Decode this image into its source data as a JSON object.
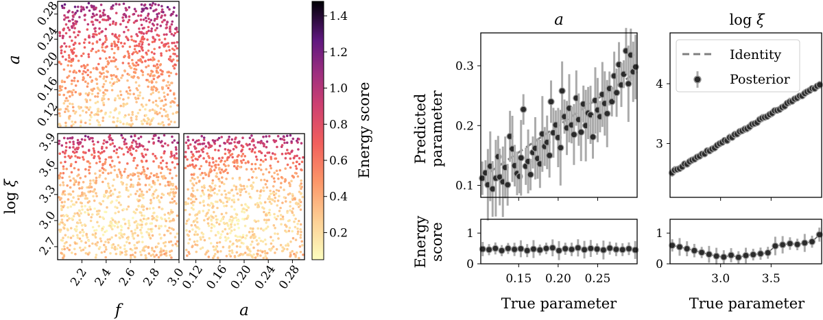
{
  "colors": {
    "identity": "#7f7f7f",
    "posterior": "#2b2b2b",
    "errorbar": "#aaaaaa"
  },
  "chart_data": [
    {
      "type": "scatter",
      "panel": "f-a",
      "colormap": "magma_r",
      "xlim": [
        2.0,
        3.0
      ],
      "ylim": [
        0.1,
        0.3
      ],
      "x_ticks": [],
      "y_ticks": [
        "0.12",
        "0.16",
        "0.20",
        "0.24",
        "0.28"
      ],
      "ylabel": "a"
    },
    {
      "type": "scatter",
      "panel": "f-logxi",
      "colormap": "magma_r",
      "xlim": [
        2.0,
        3.0
      ],
      "ylim": [
        2.55,
        4.0
      ],
      "x_ticks": [
        "2.2",
        "2.4",
        "2.6",
        "2.8",
        "3.0"
      ],
      "y_ticks": [
        "2.7",
        "3.0",
        "3.3",
        "3.6",
        "3.9"
      ],
      "xlabel": "f",
      "ylabel": "log ξ"
    },
    {
      "type": "scatter",
      "panel": "a-logxi",
      "colormap": "magma_r",
      "xlim": [
        0.1,
        0.3
      ],
      "ylim": [
        2.55,
        4.0
      ],
      "x_ticks": [
        "0.12",
        "0.16",
        "0.20",
        "0.24",
        "0.28"
      ],
      "y_ticks": [],
      "xlabel": "a"
    },
    {
      "type": "heatmap",
      "panel": "colorbar",
      "label": "Energy score",
      "range": [
        0.05,
        1.48
      ],
      "ticks": [
        "0.2",
        "0.4",
        "0.6",
        "0.8",
        "1.0",
        "1.2",
        "1.4"
      ]
    },
    {
      "type": "scatter",
      "panel": "recovery-a",
      "title": "a",
      "ylabel_line1": "Predicted",
      "ylabel_line2": "parameter",
      "xlim": [
        0.102,
        0.3
      ],
      "ylim": [
        0.08,
        0.355
      ],
      "y_ticks": [
        "0.1",
        "0.2",
        "0.3"
      ],
      "series": [
        {
          "name": "Identity"
        },
        {
          "name": "Posterior"
        }
      ],
      "identity": [
        [
          0.102,
          0.112
        ],
        [
          0.3,
          0.29
        ]
      ],
      "points": [
        [
          0.104,
          0.112
        ],
        [
          0.108,
          0.121
        ],
        [
          0.111,
          0.101
        ],
        [
          0.114,
          0.132
        ],
        [
          0.117,
          0.094
        ],
        [
          0.121,
          0.112
        ],
        [
          0.124,
          0.148
        ],
        [
          0.126,
          0.114
        ],
        [
          0.13,
          0.106
        ],
        [
          0.133,
          0.13
        ],
        [
          0.136,
          0.101
        ],
        [
          0.139,
          0.182
        ],
        [
          0.142,
          0.161
        ],
        [
          0.145,
          0.133
        ],
        [
          0.148,
          0.12
        ],
        [
          0.151,
          0.115
        ],
        [
          0.153,
          0.146
        ],
        [
          0.156,
          0.227
        ],
        [
          0.159,
          0.132
        ],
        [
          0.162,
          0.14
        ],
        [
          0.165,
          0.118
        ],
        [
          0.168,
          0.155
        ],
        [
          0.171,
          0.162
        ],
        [
          0.174,
          0.145
        ],
        [
          0.177,
          0.136
        ],
        [
          0.18,
          0.186
        ],
        [
          0.183,
          0.165
        ],
        [
          0.186,
          0.172
        ],
        [
          0.189,
          0.15
        ],
        [
          0.191,
          0.24
        ],
        [
          0.194,
          0.188
        ],
        [
          0.197,
          0.201
        ],
        [
          0.2,
          0.18
        ],
        [
          0.203,
          0.163
        ],
        [
          0.205,
          0.258
        ],
        [
          0.208,
          0.215
        ],
        [
          0.211,
          0.196
        ],
        [
          0.214,
          0.229
        ],
        [
          0.217,
          0.201
        ],
        [
          0.22,
          0.185
        ],
        [
          0.223,
          0.246
        ],
        [
          0.226,
          0.21
        ],
        [
          0.229,
          0.189
        ],
        [
          0.232,
          0.236
        ],
        [
          0.235,
          0.2
        ],
        [
          0.238,
          0.221
        ],
        [
          0.241,
          0.218
        ],
        [
          0.244,
          0.181
        ],
        [
          0.247,
          0.242
        ],
        [
          0.25,
          0.226
        ],
        [
          0.253,
          0.215
        ],
        [
          0.256,
          0.252
        ],
        [
          0.259,
          0.237
        ],
        [
          0.262,
          0.22
        ],
        [
          0.265,
          0.262
        ],
        [
          0.268,
          0.24
        ],
        [
          0.271,
          0.283
        ],
        [
          0.274,
          0.255
        ],
        [
          0.277,
          0.302
        ],
        [
          0.28,
          0.268
        ],
        [
          0.283,
          0.286
        ],
        [
          0.286,
          0.325
        ],
        [
          0.289,
          0.27
        ],
        [
          0.292,
          0.318
        ],
        [
          0.295,
          0.29
        ],
        [
          0.298,
          0.298
        ]
      ]
    },
    {
      "type": "scatter",
      "panel": "recovery-logxi",
      "title": "log ξ",
      "xlim": [
        2.5,
        4.0
      ],
      "ylim": [
        2.1,
        4.85
      ],
      "y_ticks": [
        "3",
        "4"
      ],
      "legend": "top-right",
      "identity": [
        [
          2.5,
          2.5
        ],
        [
          4.0,
          4.0
        ]
      ],
      "points_count": 60
    },
    {
      "type": "line",
      "panel": "energy-a",
      "ylabel_line1": "Energy",
      "ylabel_line2": "score",
      "xlabel": "True parameter",
      "xlim": [
        0.102,
        0.3
      ],
      "ylim": [
        0.0,
        1.45
      ],
      "x_ticks": [
        "0.15",
        "0.20",
        "0.25"
      ],
      "y_ticks": [
        "0",
        "1"
      ],
      "values": [
        0.48,
        0.46,
        0.5,
        0.43,
        0.5,
        0.47,
        0.49,
        0.43,
        0.48,
        0.45,
        0.5,
        0.52,
        0.43,
        0.49,
        0.47,
        0.52,
        0.46,
        0.5,
        0.48,
        0.45,
        0.51,
        0.47,
        0.46,
        0.49,
        0.45
      ]
    },
    {
      "type": "line",
      "panel": "energy-logxi",
      "xlabel": "True parameter",
      "xlim": [
        2.5,
        4.0
      ],
      "ylim": [
        0.0,
        1.45
      ],
      "x_ticks": [
        "3.0",
        "3.5"
      ],
      "y_ticks": [
        "0",
        "1"
      ],
      "values": [
        0.6,
        0.55,
        0.49,
        0.43,
        0.37,
        0.31,
        0.25,
        0.22,
        0.28,
        0.21,
        0.27,
        0.3,
        0.33,
        0.36,
        0.58,
        0.62,
        0.66,
        0.63,
        0.68,
        0.72,
        0.95
      ]
    }
  ]
}
